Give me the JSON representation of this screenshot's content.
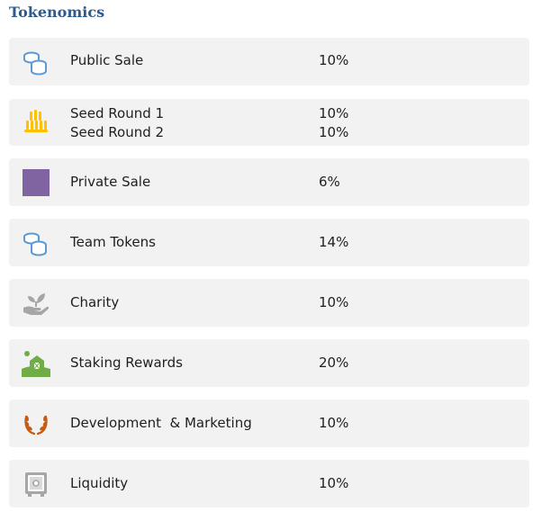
{
  "title": "Tokenomics",
  "rows": [
    {
      "label": "Public Sale",
      "percent": "10%",
      "icon": "coins-icon",
      "color": "#5b9bd5"
    },
    {
      "label": "Seed Round 1",
      "label2": "Seed Round 2",
      "percent": "10%",
      "percent2": "10%",
      "icon": "stacked-coins-icon",
      "color": "#ffc000"
    },
    {
      "label": "Private Sale",
      "percent": "6%",
      "icon": "purple-square-icon",
      "color": "#8064a2"
    },
    {
      "label": "Team Tokens",
      "percent": "14%",
      "icon": "coins-icon",
      "color": "#5b9bd5"
    },
    {
      "label": "Charity",
      "percent": "10%",
      "icon": "hand-plant-icon",
      "color": "#a6a6a6"
    },
    {
      "label": "Staking Rewards",
      "percent": "20%",
      "icon": "farm-icon",
      "color": "#70ad47"
    },
    {
      "label": "Development  & Marketing",
      "percent": "10%",
      "icon": "laurel-wreath-icon",
      "color": "#c55a11"
    },
    {
      "label": "Liquidity",
      "percent": "10%",
      "icon": "safe-icon",
      "color": "#a6a6a6"
    }
  ]
}
